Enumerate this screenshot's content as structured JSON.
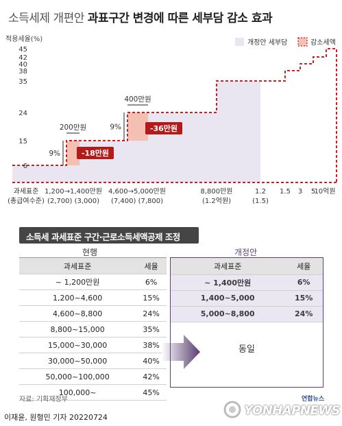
{
  "title_light": "소득세제 개편안",
  "title_bold": "과표구간 변경에 따른 세부담 감소 효과",
  "chart_data": {
    "type": "area",
    "ylabel": "적용세율(%)",
    "y_ticks": [
      6,
      15,
      24,
      35,
      38,
      40,
      42,
      45
    ],
    "legend": [
      {
        "label": "개정안 세부담",
        "color": "#e9e6f1"
      },
      {
        "label": "감소세액",
        "color": "#f3c0b3"
      }
    ],
    "x_ticks": [
      {
        "id": "t0",
        "lines": [
          "과세표준",
          "(총급여수준)"
        ]
      },
      {
        "id": "t1",
        "lines": [
          "1,200→1,400만원",
          "(2,700)  (3,000)"
        ]
      },
      {
        "id": "t2",
        "lines": [
          "4,600→5,000만원",
          "(7,400)  (7,800)"
        ]
      },
      {
        "id": "t3",
        "lines": [
          "8,800만원",
          "(1.2억원)"
        ]
      },
      {
        "id": "t4",
        "lines": [
          "1.2",
          "(1.5)"
        ]
      },
      {
        "id": "t5",
        "lines": [
          "1.5"
        ]
      },
      {
        "id": "t6",
        "lines": [
          "3"
        ]
      },
      {
        "id": "t7",
        "lines": [
          "5"
        ]
      },
      {
        "id": "t8",
        "lines": [
          "10억원"
        ]
      }
    ],
    "current_brackets": [
      {
        "upper": "1,200만원",
        "rate": 6
      },
      {
        "upper": "4,600만원",
        "rate": 15
      },
      {
        "upper": "8,800만원",
        "rate": 24
      },
      {
        "upper": "1.5억원",
        "rate": 35
      },
      {
        "upper": "3억원",
        "rate": 38
      },
      {
        "upper": "5억원",
        "rate": 40
      },
      {
        "upper": "10억원",
        "rate": 42
      },
      {
        "upper": "",
        "rate": 45
      }
    ],
    "reform_brackets": [
      {
        "upper": "1,400만원",
        "rate": 6
      },
      {
        "upper": "5,000만원",
        "rate": 15
      },
      {
        "upper": "8,800만원",
        "rate": 24
      },
      {
        "upper": "1.2억원",
        "rate": 35
      }
    ],
    "annotations": {
      "width1": "200만원",
      "width2": "400만원",
      "gap1": "9%",
      "gap2": "9%",
      "saving1": "-18만원",
      "saving2": "-36만원"
    }
  },
  "section_title": "소득세 과세표준 구간·근로소득세액공제 조정",
  "current": {
    "caption": "현행",
    "headers": [
      "과세표준",
      "세율"
    ],
    "rows": [
      [
        "~ 1,200만원",
        "6%"
      ],
      [
        "1,200~4,600",
        "15%"
      ],
      [
        "4,600~8,800",
        "24%"
      ],
      [
        "8,800~15,000",
        "35%"
      ],
      [
        "15,000~30,000",
        "38%"
      ],
      [
        "30,000~50,000",
        "40%"
      ],
      [
        "50,000~100,000",
        "42%"
      ],
      [
        "100,000~",
        "45%"
      ]
    ]
  },
  "reform": {
    "caption": "개정안",
    "headers": [
      "과세표준",
      "세율"
    ],
    "rows": [
      [
        "~ 1,400만원",
        "6%"
      ],
      [
        "1,400~5,000",
        "15%"
      ],
      [
        "5,000~8,800",
        "24%"
      ]
    ],
    "same_label": "동일"
  },
  "source": "자료: 기획재정부",
  "byline": "이재윤, 원형민 기자  20220724",
  "watermark": {
    "text": "YONHAPNEWS",
    "brand": "연합뉴스"
  }
}
